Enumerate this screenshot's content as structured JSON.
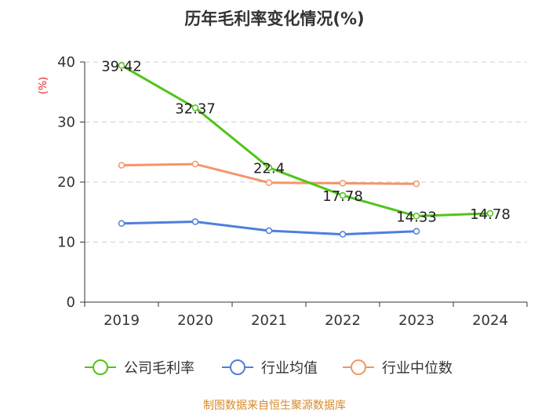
{
  "chart_data": {
    "type": "line",
    "title": "历年毛利率变化情况(%)",
    "ylabel": "(%)",
    "xlabel": "",
    "categories": [
      "2019",
      "2020",
      "2021",
      "2022",
      "2023",
      "2024"
    ],
    "ylim": [
      0,
      40
    ],
    "yticks": [
      0,
      10,
      20,
      30,
      40
    ],
    "grid": "horizontal-dashed",
    "legend_position": "bottom",
    "series": [
      {
        "name": "公司毛利率",
        "color": "#52c41a",
        "values": [
          39.42,
          32.37,
          22.4,
          17.78,
          14.33,
          14.78
        ],
        "labels": [
          "39.42",
          "32.37",
          "22.4",
          "17.78",
          "14.33",
          "14.78"
        ]
      },
      {
        "name": "行业均值",
        "color": "#4e7fdb",
        "values": [
          13.1,
          13.4,
          11.9,
          11.3,
          11.8,
          null
        ]
      },
      {
        "name": "行业中位数",
        "color": "#f4956a",
        "values": [
          22.8,
          23.0,
          19.9,
          19.8,
          19.7,
          null
        ]
      }
    ],
    "source": "制图数据来自恒生聚源数据库"
  }
}
